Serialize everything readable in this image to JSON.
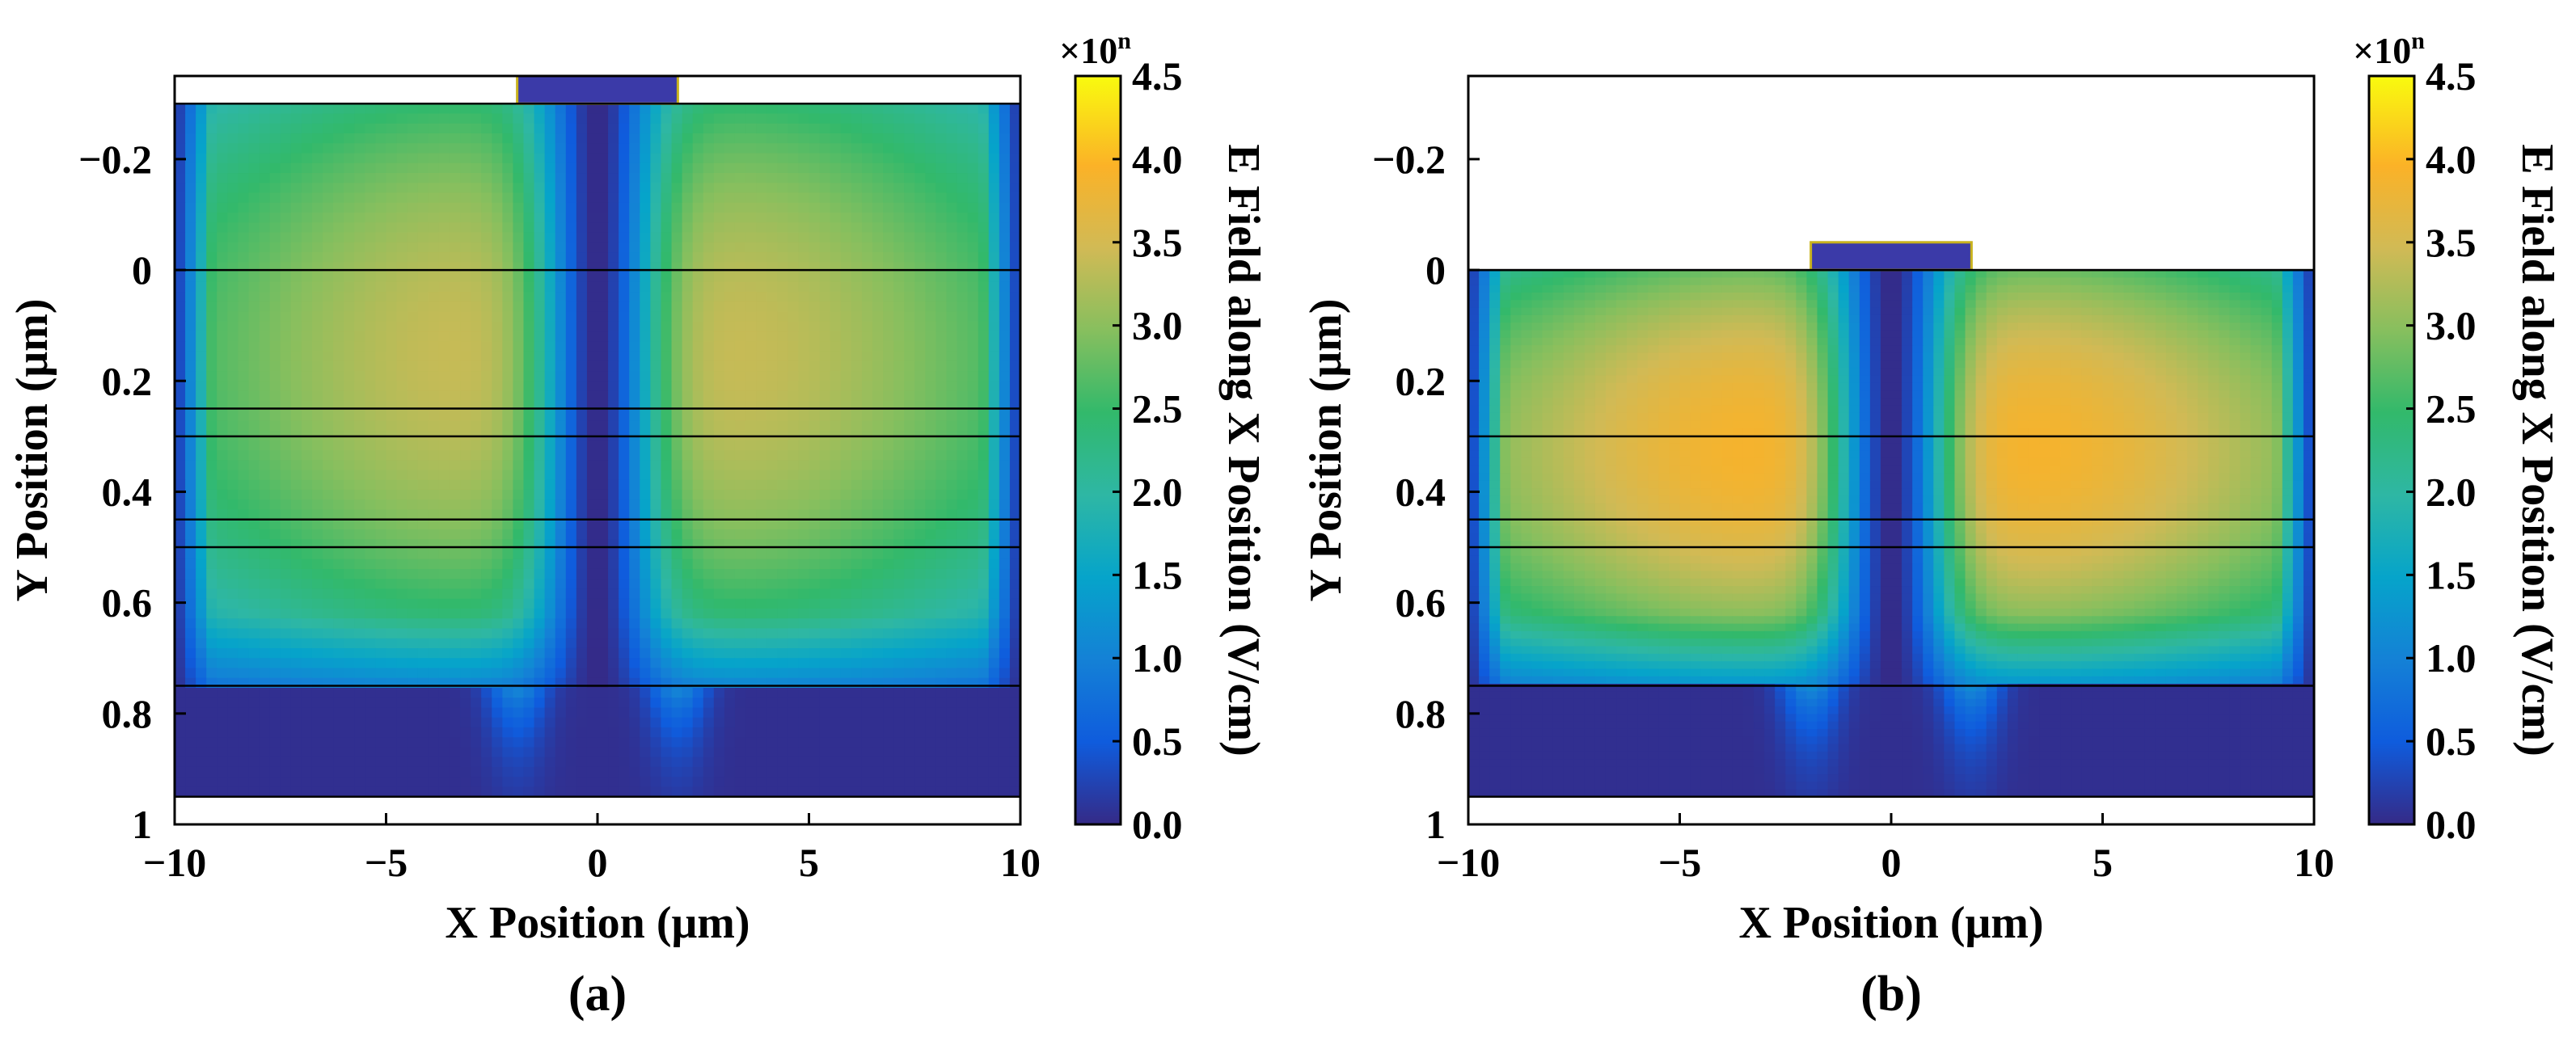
{
  "chart_data": [
    {
      "type": "heatmap",
      "panel_label": "(a)",
      "xlabel": "X Position (μm)",
      "ylabel": "Y Position (μm)",
      "xlim": [
        -10,
        10
      ],
      "ylim": [
        -0.35,
        1.0
      ],
      "y_inverted": true,
      "x_ticks": [
        -10,
        -5,
        0,
        5,
        10
      ],
      "x_tick_labels": [
        "−10",
        "−5",
        "0",
        "5",
        "10"
      ],
      "y_ticks": [
        -0.2,
        0,
        0.2,
        0.4,
        0.6,
        0.8,
        1
      ],
      "y_tick_labels": [
        "−0.2",
        "0",
        "0.2",
        "0.4",
        "0.6",
        "0.8",
        "1"
      ],
      "gate": {
        "x": [
          -1.9,
          1.9
        ],
        "y": [
          -0.35,
          -0.3
        ]
      },
      "device_top_y": -0.3,
      "device_bottom_y": 0.95,
      "layer_boundaries_y": [
        0,
        0.25,
        0.3,
        0.45,
        0.5,
        0.75
      ],
      "field_max": 3.4,
      "colorbar": {
        "label": "E Field along X Position (V/cm)",
        "multiplier": "×10",
        "multiplier_exp": "n",
        "range": [
          0,
          4.5
        ],
        "ticks": [
          0,
          0.5,
          1.0,
          1.5,
          2.0,
          2.5,
          3.0,
          3.5,
          4.0,
          4.5
        ],
        "tick_labels": [
          "0.0",
          "0.5",
          "1.0",
          "1.5",
          "2.0",
          "2.5",
          "3.0",
          "3.5",
          "4.0",
          "4.5"
        ]
      }
    },
    {
      "type": "heatmap",
      "panel_label": "(b)",
      "xlabel": "X Position (μm)",
      "ylabel": "Y Position (μm)",
      "xlim": [
        -10,
        10
      ],
      "ylim": [
        -0.35,
        1.0
      ],
      "y_inverted": true,
      "x_ticks": [
        -10,
        -5,
        0,
        5,
        10
      ],
      "x_tick_labels": [
        "−10",
        "−5",
        "0",
        "5",
        "10"
      ],
      "y_ticks": [
        -0.2,
        0,
        0.2,
        0.4,
        0.6,
        0.8,
        1
      ],
      "y_tick_labels": [
        "−0.2",
        "0",
        "0.2",
        "0.4",
        "0.6",
        "0.8",
        "1"
      ],
      "gate": {
        "x": [
          -1.9,
          1.9
        ],
        "y": [
          -0.05,
          0
        ]
      },
      "device_top_y": 0,
      "device_bottom_y": 0.95,
      "layer_boundaries_y": [
        0,
        0.3,
        0.45,
        0.5,
        0.75
      ],
      "field_max": 3.9,
      "colorbar": {
        "label": "E Field along X Position (V/cm)",
        "multiplier": "×10",
        "multiplier_exp": "n",
        "range": [
          0,
          4.5
        ],
        "ticks": [
          0,
          0.5,
          1.0,
          1.5,
          2.0,
          2.5,
          3.0,
          3.5,
          4.0,
          4.5
        ],
        "tick_labels": [
          "0.0",
          "0.5",
          "1.0",
          "1.5",
          "2.0",
          "2.5",
          "3.0",
          "3.5",
          "4.0",
          "4.5"
        ]
      }
    }
  ]
}
